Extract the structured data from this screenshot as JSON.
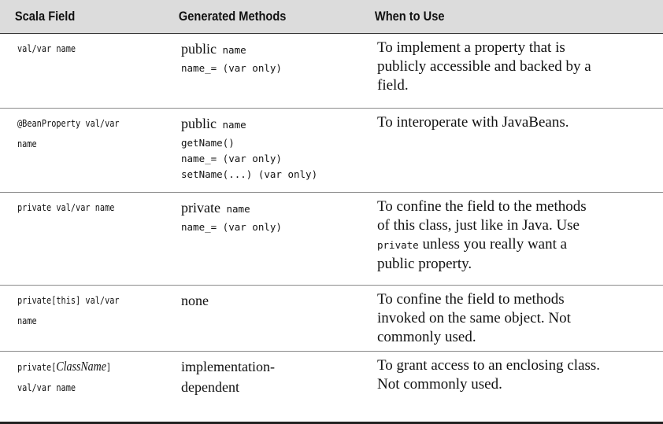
{
  "header": {
    "col1": "Scala Field",
    "col2": "Generated Methods",
    "col3": "When to Use"
  },
  "rows": [
    {
      "field": [
        "val/var name"
      ],
      "methods": [
        {
          "a": "public",
          "b": " name"
        },
        {
          "a": "name_=",
          "b": " (var only)"
        }
      ],
      "desc": [
        "To implement a property that is",
        "publicly accessible and backed by a",
        "field."
      ]
    },
    {
      "field": [
        "@BeanProperty val/var",
        "name"
      ],
      "methods": [
        {
          "a": "public",
          "b": " name"
        },
        {
          "a": "getName()",
          "b": ""
        },
        {
          "a": "name_=",
          "b": " (var only)"
        },
        {
          "a": "setName(...)",
          "b": " (var only)"
        }
      ],
      "desc": [
        "To interoperate with JavaBeans."
      ]
    },
    {
      "field": [
        "private val/var name"
      ],
      "methods": [
        {
          "a": "private",
          "b": " name"
        },
        {
          "a": "name_=",
          "b": " (var only)"
        }
      ],
      "desc": [
        "To confine the field to the methods",
        "of this class, just like in Java. Use",
        {
          "code": "private",
          "text": " unless you really want a"
        },
        "public property."
      ]
    },
    {
      "field": [
        "private[this] val/var",
        "name"
      ],
      "methods": [
        {
          "a": "none",
          "b": ""
        }
      ],
      "desc": [
        "To confine the field to methods",
        "invoked on the same object. Not",
        "commonly used."
      ]
    },
    {
      "field_parts": {
        "prefix": "private[",
        "italic": "ClassName",
        "suffix": "]"
      },
      "field_line2": "val/var name",
      "methods": [
        {
          "a": "implementation-",
          "b": ""
        },
        {
          "a": "dependent",
          "b": ""
        }
      ],
      "desc": [
        "To grant access to an enclosing class.",
        "Not commonly used."
      ]
    }
  ]
}
